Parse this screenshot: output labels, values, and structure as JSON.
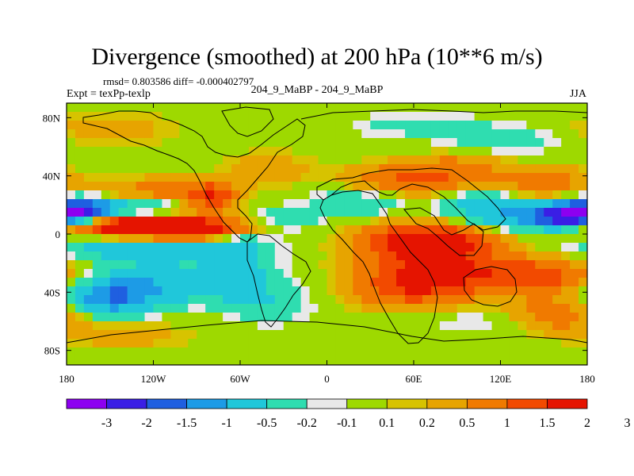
{
  "title": "Divergence (smoothed) at 200 hPa (10**6 m/s)",
  "stats_text": "rmsd= 0.803586 diff= -0.000402797",
  "expt_text": "Expt = texPp-texlp",
  "case_text": "204_9_MaBP - 204_9_MaBP",
  "season": "JJA",
  "colors": {
    "bins": [
      "#8d00f0",
      "#3a1ee5",
      "#1f5fe0",
      "#1d9be6",
      "#20c7da",
      "#2fddb0",
      "#e8e8e8",
      "#9ed900",
      "#d7c300",
      "#e7a400",
      "#f07a00",
      "#f24a00",
      "#e51400"
    ],
    "land_outline": "#000000",
    "frame": "#000000"
  },
  "chart_data": {
    "type": "heatmap",
    "title": "Divergence (smoothed) at 200 hPa (10**6 m/s)",
    "xlabel": "",
    "ylabel": "",
    "xlim": [
      -180,
      180
    ],
    "ylim": [
      -90,
      90
    ],
    "x_ticks": [
      -180,
      -120,
      -60,
      0,
      60,
      120,
      180
    ],
    "x_tick_labels": [
      "180",
      "120W",
      "60W",
      "0",
      "60E",
      "120E",
      "180"
    ],
    "y_ticks": [
      80,
      40,
      0,
      -40,
      -80
    ],
    "y_tick_labels": [
      "80N",
      "40N",
      "0",
      "40S",
      "80S"
    ],
    "colorbar_levels": [
      -3,
      -2,
      -1.5,
      -1,
      -0.5,
      -0.2,
      -0.1,
      0.1,
      0.2,
      0.5,
      1,
      1.5,
      2,
      3
    ],
    "colorbar_labels": [
      "-3",
      "-2",
      "-1.5",
      "-1",
      "-0.5",
      "-0.2",
      "-0.1",
      "0.1",
      "0.2",
      "0.5",
      "1",
      "1.5",
      "2",
      "3"
    ],
    "background_value": 0,
    "features": [
      {
        "lon": -130,
        "lat": 6,
        "sx": 45,
        "sy": 6,
        "value": 2.6
      },
      {
        "lon": -100,
        "lat": 2,
        "sx": 22,
        "sy": 4,
        "value": 1.8
      },
      {
        "lon": -170,
        "lat": 15,
        "sx": 14,
        "sy": 6,
        "value": -2.6
      },
      {
        "lon": -130,
        "lat": 16,
        "sx": 28,
        "sy": 5,
        "value": -1.0
      },
      {
        "lon": -120,
        "lat": -8,
        "sx": 45,
        "sy": 8,
        "value": -1.0
      },
      {
        "lon": -120,
        "lat": -35,
        "sx": 55,
        "sy": 9,
        "value": -0.9
      },
      {
        "lon": -150,
        "lat": -45,
        "sx": 20,
        "sy": 8,
        "value": -1.2
      },
      {
        "lon": -110,
        "lat": 30,
        "sx": 30,
        "sy": 6,
        "value": 0.7
      },
      {
        "lon": -80,
        "lat": 25,
        "sx": 12,
        "sy": 7,
        "value": 1.2
      },
      {
        "lon": -150,
        "lat": 72,
        "sx": 30,
        "sy": 8,
        "value": 0.35
      },
      {
        "lon": -140,
        "lat": -70,
        "sx": 35,
        "sy": 7,
        "value": 0.3
      },
      {
        "lon": -60,
        "lat": -20,
        "sx": 14,
        "sy": 14,
        "value": -0.5
      },
      {
        "lon": -40,
        "lat": -50,
        "sx": 20,
        "sy": 8,
        "value": -0.4
      },
      {
        "lon": -30,
        "lat": 10,
        "sx": 18,
        "sy": 6,
        "value": -0.5
      },
      {
        "lon": -40,
        "lat": 45,
        "sx": 20,
        "sy": 8,
        "value": 0.4
      },
      {
        "lon": 20,
        "lat": 22,
        "sx": 22,
        "sy": 7,
        "value": -0.5
      },
      {
        "lon": 55,
        "lat": 38,
        "sx": 28,
        "sy": 7,
        "value": 1.0
      },
      {
        "lon": 90,
        "lat": 45,
        "sx": 22,
        "sy": 8,
        "value": 0.6
      },
      {
        "lon": 70,
        "lat": -5,
        "sx": 30,
        "sy": 8,
        "value": 2.4
      },
      {
        "lon": 75,
        "lat": -25,
        "sx": 35,
        "sy": 9,
        "value": 1.6
      },
      {
        "lon": 60,
        "lat": -40,
        "sx": 30,
        "sy": 8,
        "value": 1.1
      },
      {
        "lon": 150,
        "lat": -30,
        "sx": 30,
        "sy": 9,
        "value": 1.4
      },
      {
        "lon": 160,
        "lat": -55,
        "sx": 22,
        "sy": 8,
        "value": 0.8
      },
      {
        "lon": 135,
        "lat": 10,
        "sx": 32,
        "sy": 7,
        "value": -1.1
      },
      {
        "lon": 165,
        "lat": 13,
        "sx": 14,
        "sy": 6,
        "value": -2.6
      },
      {
        "lon": 110,
        "lat": 22,
        "sx": 18,
        "sy": 6,
        "value": -0.7
      },
      {
        "lon": 150,
        "lat": 35,
        "sx": 25,
        "sy": 8,
        "value": 0.7
      },
      {
        "lon": 120,
        "lat": 65,
        "sx": 30,
        "sy": 7,
        "value": -0.4
      },
      {
        "lon": 60,
        "lat": 75,
        "sx": 30,
        "sy": 6,
        "value": -0.3
      },
      {
        "lon": 100,
        "lat": -60,
        "sx": 25,
        "sy": 7,
        "value": -0.2
      }
    ]
  }
}
